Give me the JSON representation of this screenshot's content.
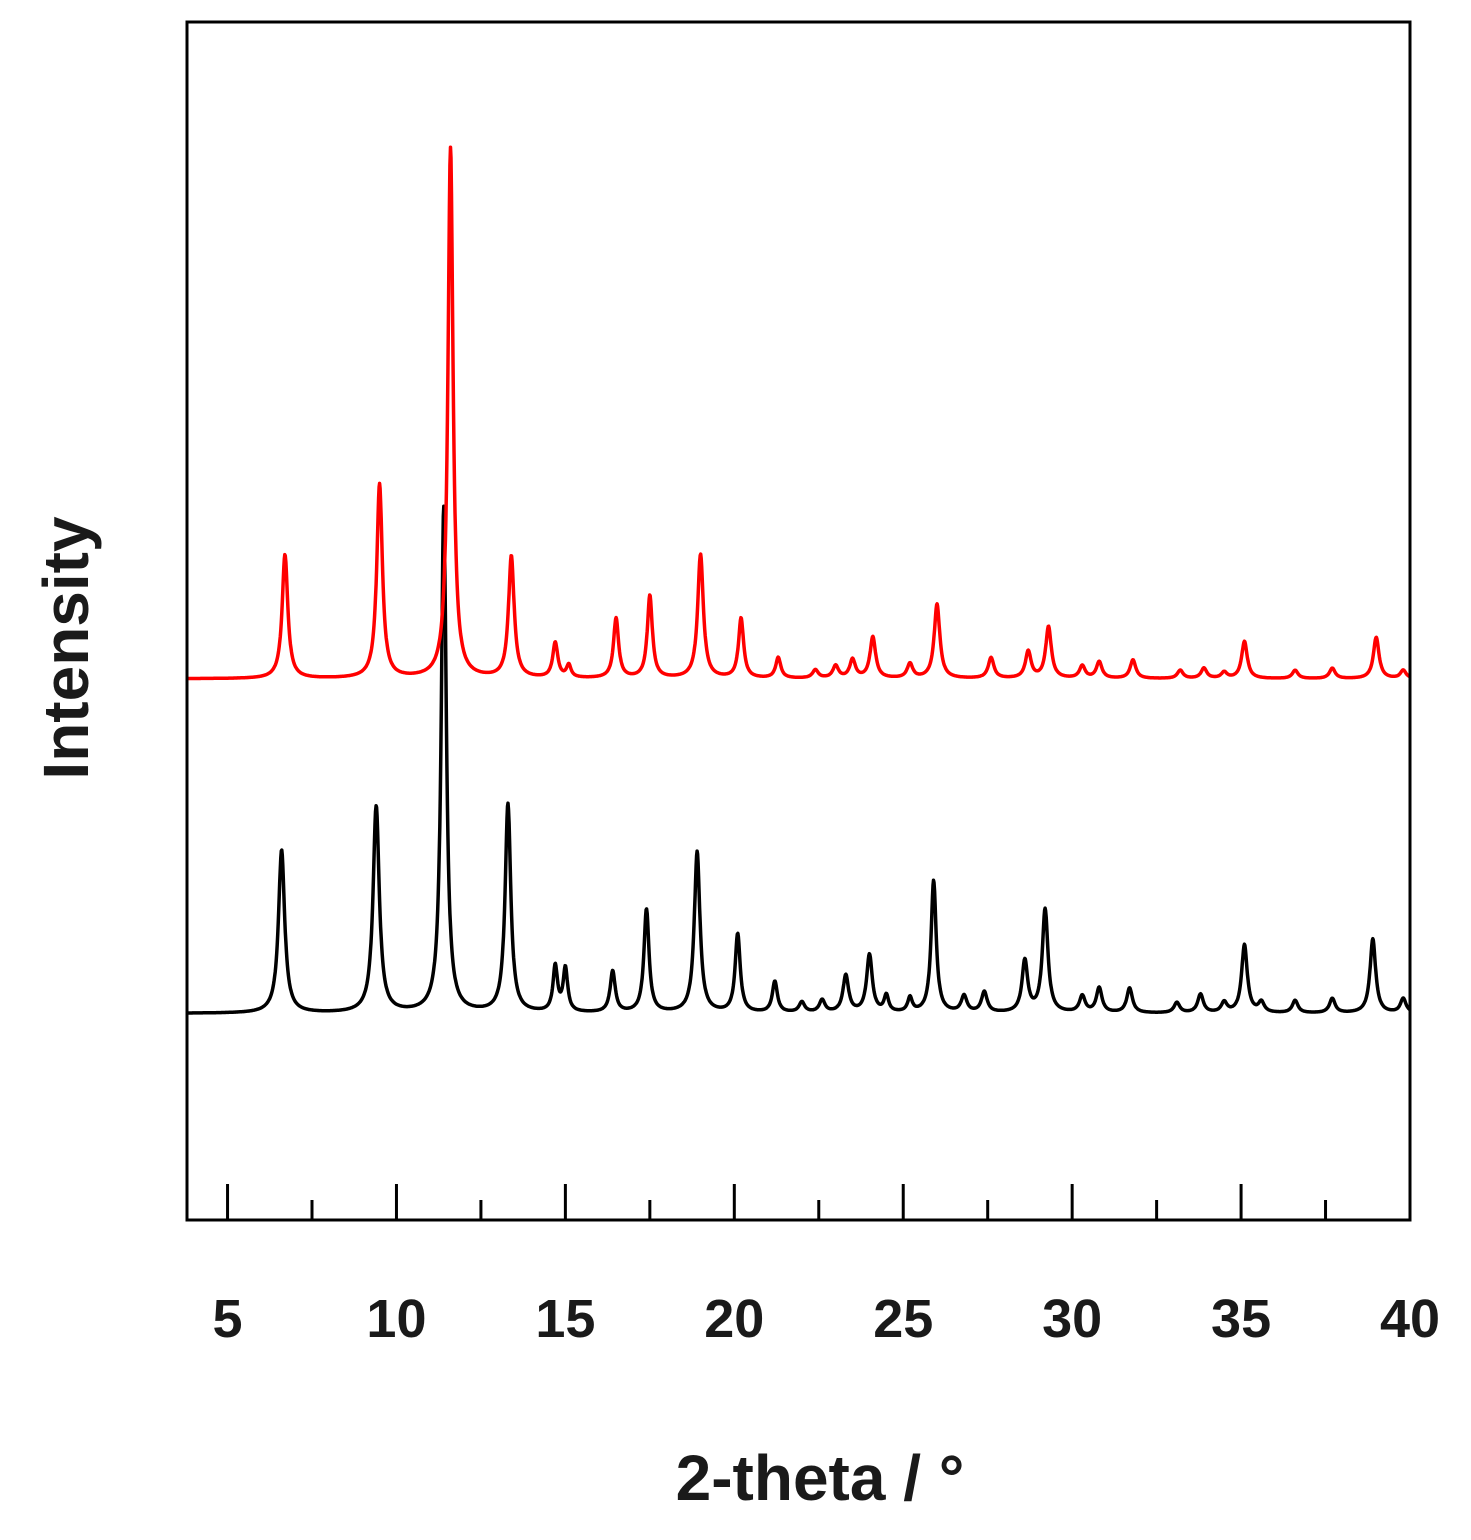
{
  "chart_data": {
    "type": "line",
    "xlabel": "2-theta / °",
    "ylabel": "Intensity",
    "xlim": [
      3.8,
      40
    ],
    "ylim": [
      -1.0,
      4.8
    ],
    "x_ticks_major": [
      5,
      10,
      15,
      20,
      25,
      30,
      35,
      40
    ],
    "x_ticks_minor": [
      7.5,
      12.5,
      17.5,
      22.5,
      27.5,
      32.5,
      37.5
    ],
    "y_ticks": false,
    "grid": false,
    "legend": "none",
    "series": [
      {
        "color": "#000000",
        "baseline": 0,
        "peaks": [
          [
            6.6,
            0.79,
            0.11
          ],
          [
            9.4,
            1.0,
            0.11
          ],
          [
            11.4,
            2.45,
            0.09
          ],
          [
            13.3,
            1.01,
            0.1
          ],
          [
            14.7,
            0.22,
            0.08
          ],
          [
            15.0,
            0.21,
            0.08
          ],
          [
            16.4,
            0.2,
            0.09
          ],
          [
            17.4,
            0.5,
            0.09
          ],
          [
            18.9,
            0.78,
            0.1
          ],
          [
            20.1,
            0.38,
            0.09
          ],
          [
            21.2,
            0.15,
            0.09
          ],
          [
            22.0,
            0.05,
            0.1
          ],
          [
            22.6,
            0.06,
            0.1
          ],
          [
            23.3,
            0.18,
            0.1
          ],
          [
            24.0,
            0.28,
            0.1
          ],
          [
            24.5,
            0.08,
            0.08
          ],
          [
            25.2,
            0.07,
            0.08
          ],
          [
            25.9,
            0.64,
            0.09
          ],
          [
            26.8,
            0.08,
            0.1
          ],
          [
            27.4,
            0.1,
            0.1
          ],
          [
            28.6,
            0.25,
            0.1
          ],
          [
            29.2,
            0.5,
            0.1
          ],
          [
            30.3,
            0.08,
            0.1
          ],
          [
            30.8,
            0.12,
            0.1
          ],
          [
            31.7,
            0.12,
            0.1
          ],
          [
            33.1,
            0.05,
            0.1
          ],
          [
            33.8,
            0.09,
            0.1
          ],
          [
            34.5,
            0.05,
            0.1
          ],
          [
            35.1,
            0.33,
            0.1
          ],
          [
            35.6,
            0.05,
            0.1
          ],
          [
            36.6,
            0.06,
            0.1
          ],
          [
            37.7,
            0.07,
            0.1
          ],
          [
            38.9,
            0.36,
            0.1
          ],
          [
            39.8,
            0.07,
            0.1
          ]
        ]
      },
      {
        "color": "#ff0000",
        "baseline": 1.62,
        "peaks": [
          [
            6.7,
            0.6,
            0.1
          ],
          [
            9.5,
            0.94,
            0.1
          ],
          [
            11.6,
            2.57,
            0.09
          ],
          [
            13.4,
            0.59,
            0.1
          ],
          [
            14.7,
            0.17,
            0.09
          ],
          [
            15.1,
            0.06,
            0.08
          ],
          [
            16.5,
            0.29,
            0.09
          ],
          [
            17.5,
            0.4,
            0.09
          ],
          [
            19.0,
            0.6,
            0.1
          ],
          [
            20.2,
            0.29,
            0.09
          ],
          [
            21.3,
            0.1,
            0.09
          ],
          [
            22.4,
            0.04,
            0.1
          ],
          [
            23.0,
            0.06,
            0.1
          ],
          [
            23.5,
            0.09,
            0.1
          ],
          [
            24.1,
            0.2,
            0.1
          ],
          [
            25.2,
            0.07,
            0.1
          ],
          [
            26.0,
            0.36,
            0.1
          ],
          [
            27.6,
            0.1,
            0.1
          ],
          [
            28.7,
            0.13,
            0.1
          ],
          [
            29.3,
            0.25,
            0.1
          ],
          [
            30.3,
            0.06,
            0.1
          ],
          [
            30.8,
            0.08,
            0.1
          ],
          [
            31.8,
            0.09,
            0.1
          ],
          [
            33.2,
            0.04,
            0.1
          ],
          [
            33.9,
            0.05,
            0.1
          ],
          [
            34.5,
            0.03,
            0.1
          ],
          [
            35.1,
            0.18,
            0.1
          ],
          [
            36.6,
            0.04,
            0.1
          ],
          [
            37.7,
            0.05,
            0.1
          ],
          [
            39.0,
            0.2,
            0.1
          ],
          [
            39.8,
            0.04,
            0.1
          ]
        ]
      }
    ]
  }
}
